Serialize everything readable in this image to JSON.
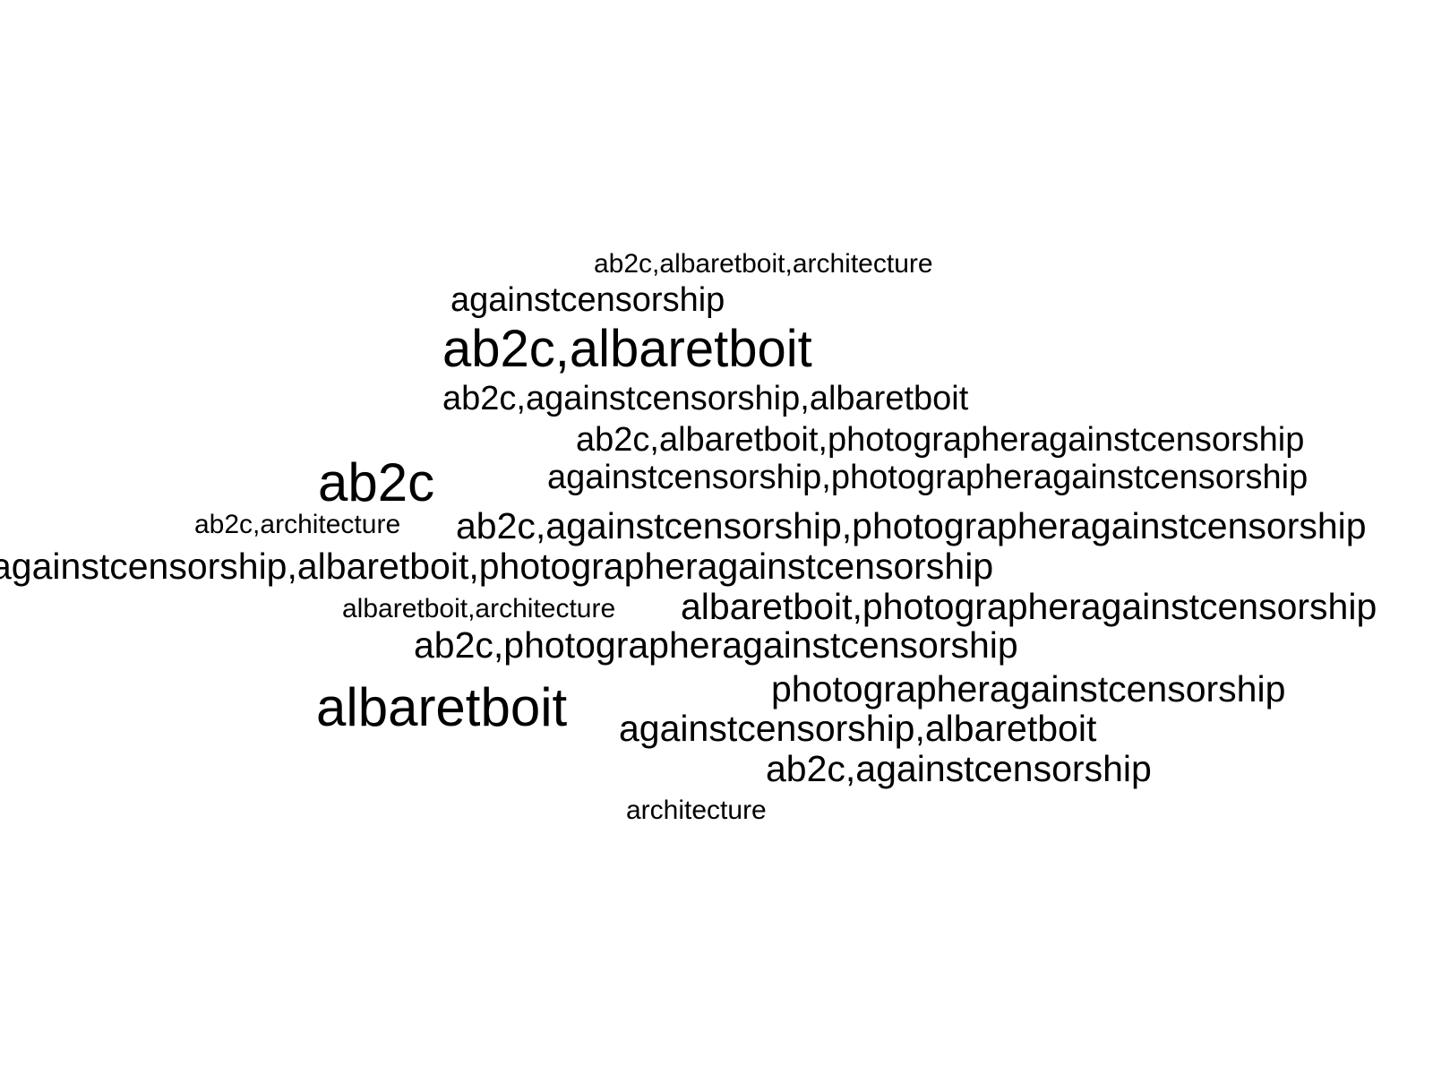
{
  "text_color": "#000000",
  "background": "#ffffff",
  "words": [
    "ab2c,albaretboit,architecture",
    "againstcensorship",
    "ab2c,albaretboit",
    "ab2c,againstcensorship,albaretboit",
    "ab2c,albaretboit,photographeragainstcensorship",
    "ab2c",
    "againstcensorship,photographeragainstcensorship",
    "ab2c,architecture",
    "ab2c,againstcensorship,photographeragainstcensorship",
    "againstcensorship,albaretboit,photographeragainstcensorship",
    "albaretboit,architecture",
    "albaretboit,photographeragainstcensorship",
    "ab2c,photographeragainstcensorship",
    "albaretboit",
    "photographeragainstcensorship",
    "againstcensorship,albaretboit",
    "ab2c,againstcensorship",
    "architecture"
  ]
}
